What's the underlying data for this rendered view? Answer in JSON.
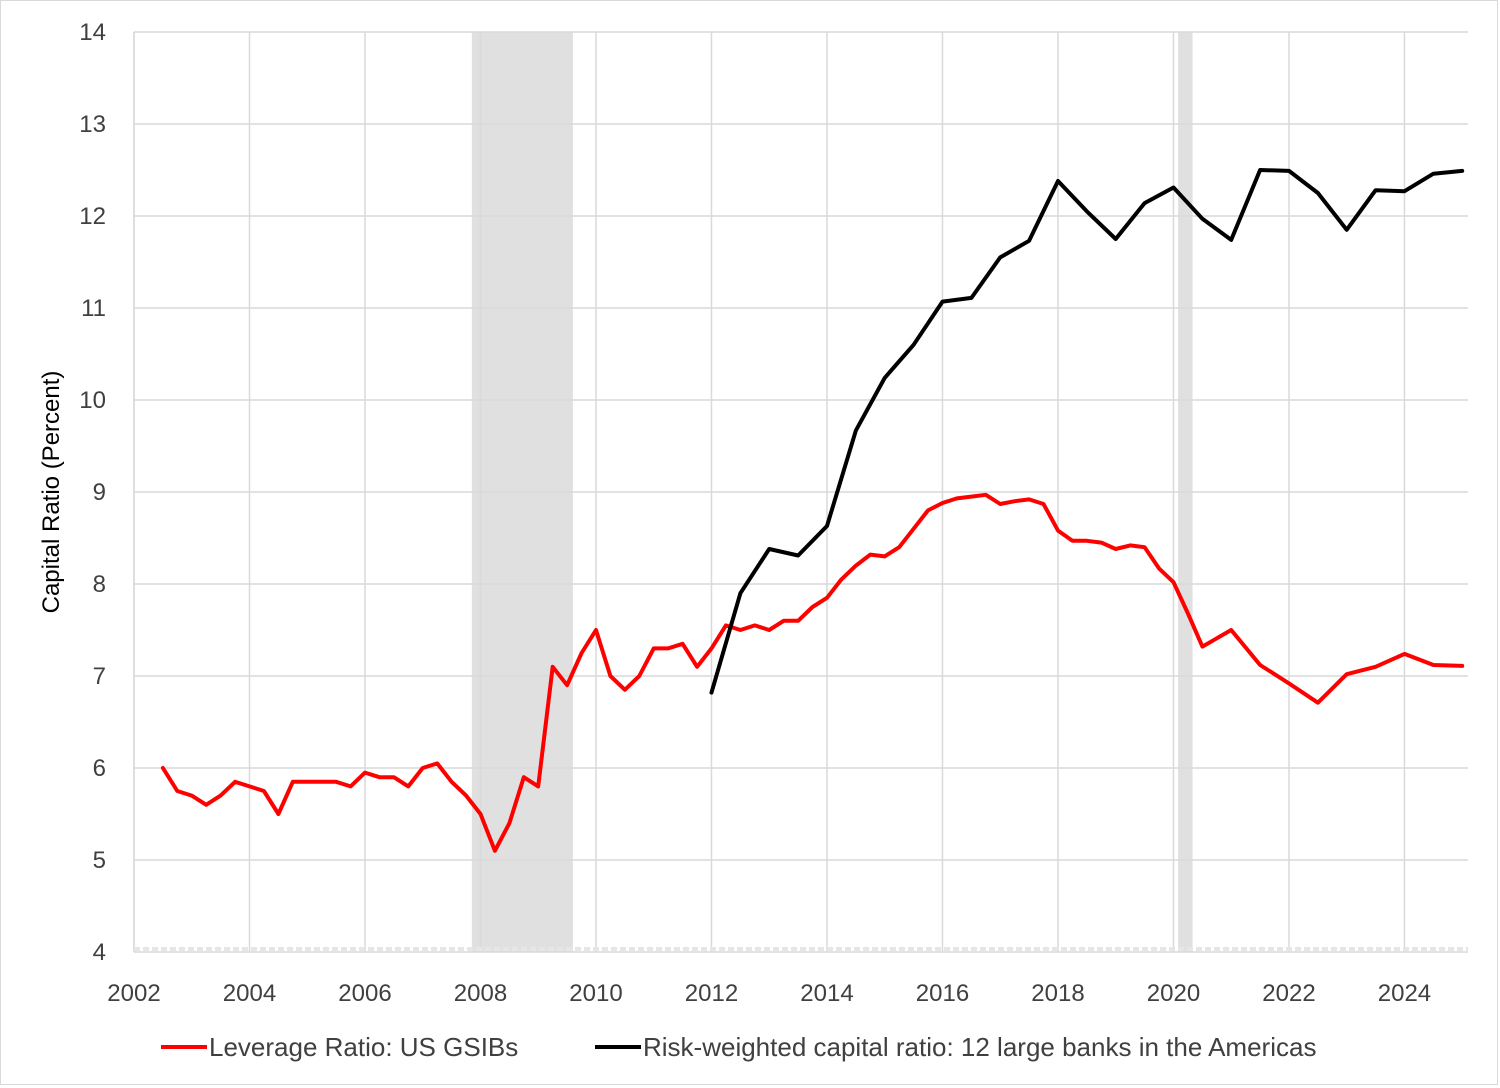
{
  "chart_data": {
    "type": "line",
    "ylabel": "Capital Ratio (Percent)",
    "xlabel": "",
    "ylim": [
      4,
      14
    ],
    "xlim": [
      2002,
      2025.1
    ],
    "y_ticks": [
      "4",
      "5",
      "6",
      "7",
      "8",
      "9",
      "10",
      "11",
      "12",
      "13",
      "14"
    ],
    "x_ticks": [
      "2002",
      "2004",
      "2006",
      "2008",
      "2010",
      "2012",
      "2014",
      "2016",
      "2018",
      "2020",
      "2022",
      "2024"
    ],
    "grid": true,
    "legend_position": "bottom",
    "shaded_periods": [
      {
        "start": 2007.85,
        "end": 2009.6
      },
      {
        "start": 2020.08,
        "end": 2020.33
      }
    ],
    "colors": {
      "leverage": "#ff0000",
      "risk_weighted": "#000000",
      "recession": "#e0e0e0",
      "grid": "#d9d9d9"
    },
    "series": [
      {
        "name": "Leverage Ratio: US GSIBs",
        "color": "#ff0000",
        "points": [
          [
            2002.5,
            6.0
          ],
          [
            2002.75,
            5.75
          ],
          [
            2003.0,
            5.7
          ],
          [
            2003.25,
            5.6
          ],
          [
            2003.5,
            5.7
          ],
          [
            2003.75,
            5.85
          ],
          [
            2004.0,
            5.8
          ],
          [
            2004.25,
            5.75
          ],
          [
            2004.5,
            5.5
          ],
          [
            2004.75,
            5.85
          ],
          [
            2005.0,
            5.85
          ],
          [
            2005.25,
            5.85
          ],
          [
            2005.5,
            5.85
          ],
          [
            2005.75,
            5.8
          ],
          [
            2006.0,
            5.95
          ],
          [
            2006.25,
            5.9
          ],
          [
            2006.5,
            5.9
          ],
          [
            2006.75,
            5.8
          ],
          [
            2007.0,
            6.0
          ],
          [
            2007.25,
            6.05
          ],
          [
            2007.5,
            5.85
          ],
          [
            2007.75,
            5.7
          ],
          [
            2008.0,
            5.5
          ],
          [
            2008.25,
            5.1
          ],
          [
            2008.5,
            5.4
          ],
          [
            2008.75,
            5.9
          ],
          [
            2009.0,
            5.8
          ],
          [
            2009.25,
            7.1
          ],
          [
            2009.5,
            6.9
          ],
          [
            2009.75,
            7.25
          ],
          [
            2010.0,
            7.5
          ],
          [
            2010.25,
            7.0
          ],
          [
            2010.5,
            6.85
          ],
          [
            2010.75,
            7.0
          ],
          [
            2011.0,
            7.3
          ],
          [
            2011.25,
            7.3
          ],
          [
            2011.5,
            7.35
          ],
          [
            2011.75,
            7.1
          ],
          [
            2012.0,
            7.3
          ],
          [
            2012.25,
            7.55
          ],
          [
            2012.5,
            7.5
          ],
          [
            2012.75,
            7.55
          ],
          [
            2013.0,
            7.5
          ],
          [
            2013.25,
            7.6
          ],
          [
            2013.5,
            7.6
          ],
          [
            2013.75,
            7.75
          ],
          [
            2014.0,
            7.85
          ],
          [
            2014.25,
            8.05
          ],
          [
            2014.5,
            8.2
          ],
          [
            2014.75,
            8.32
          ],
          [
            2015.0,
            8.3
          ],
          [
            2015.25,
            8.4
          ],
          [
            2015.5,
            8.6
          ],
          [
            2015.75,
            8.8
          ],
          [
            2016.0,
            8.88
          ],
          [
            2016.25,
            8.93
          ],
          [
            2016.5,
            8.95
          ],
          [
            2016.75,
            8.97
          ],
          [
            2017.0,
            8.87
          ],
          [
            2017.25,
            8.9
          ],
          [
            2017.5,
            8.92
          ],
          [
            2017.75,
            8.87
          ],
          [
            2018.0,
            8.58
          ],
          [
            2018.25,
            8.47
          ],
          [
            2018.5,
            8.47
          ],
          [
            2018.75,
            8.45
          ],
          [
            2019.0,
            8.38
          ],
          [
            2019.25,
            8.42
          ],
          [
            2019.5,
            8.4
          ],
          [
            2019.75,
            8.17
          ],
          [
            2020.0,
            8.02
          ],
          [
            2020.25,
            7.68
          ],
          [
            2020.5,
            7.32
          ],
          [
            2020.75,
            7.41
          ],
          [
            2021.0,
            7.5
          ],
          [
            2021.5,
            7.12
          ],
          [
            2022.0,
            6.92
          ],
          [
            2022.5,
            6.71
          ],
          [
            2023.0,
            7.02
          ],
          [
            2023.5,
            7.1
          ],
          [
            2024.0,
            7.24
          ],
          [
            2024.5,
            7.12
          ],
          [
            2025.0,
            7.11
          ]
        ]
      },
      {
        "name": "Risk-weighted capital ratio: 12 large banks in the Americas",
        "color": "#000000",
        "points": [
          [
            2012.0,
            6.82
          ],
          [
            2012.5,
            7.9
          ],
          [
            2013.0,
            8.38
          ],
          [
            2013.5,
            8.31
          ],
          [
            2014.0,
            8.63
          ],
          [
            2014.5,
            9.67
          ],
          [
            2015.0,
            10.24
          ],
          [
            2015.5,
            10.6
          ],
          [
            2016.0,
            11.07
          ],
          [
            2016.5,
            11.11
          ],
          [
            2017.0,
            11.55
          ],
          [
            2017.5,
            11.73
          ],
          [
            2018.0,
            12.38
          ],
          [
            2018.5,
            12.05
          ],
          [
            2019.0,
            11.75
          ],
          [
            2019.5,
            12.14
          ],
          [
            2020.0,
            12.31
          ],
          [
            2020.5,
            11.97
          ],
          [
            2021.0,
            11.74
          ],
          [
            2021.5,
            12.5
          ],
          [
            2022.0,
            12.49
          ],
          [
            2022.5,
            12.25
          ],
          [
            2023.0,
            11.85
          ],
          [
            2023.5,
            12.28
          ],
          [
            2024.0,
            12.27
          ],
          [
            2024.5,
            12.46
          ],
          [
            2025.0,
            12.49
          ]
        ]
      }
    ]
  }
}
